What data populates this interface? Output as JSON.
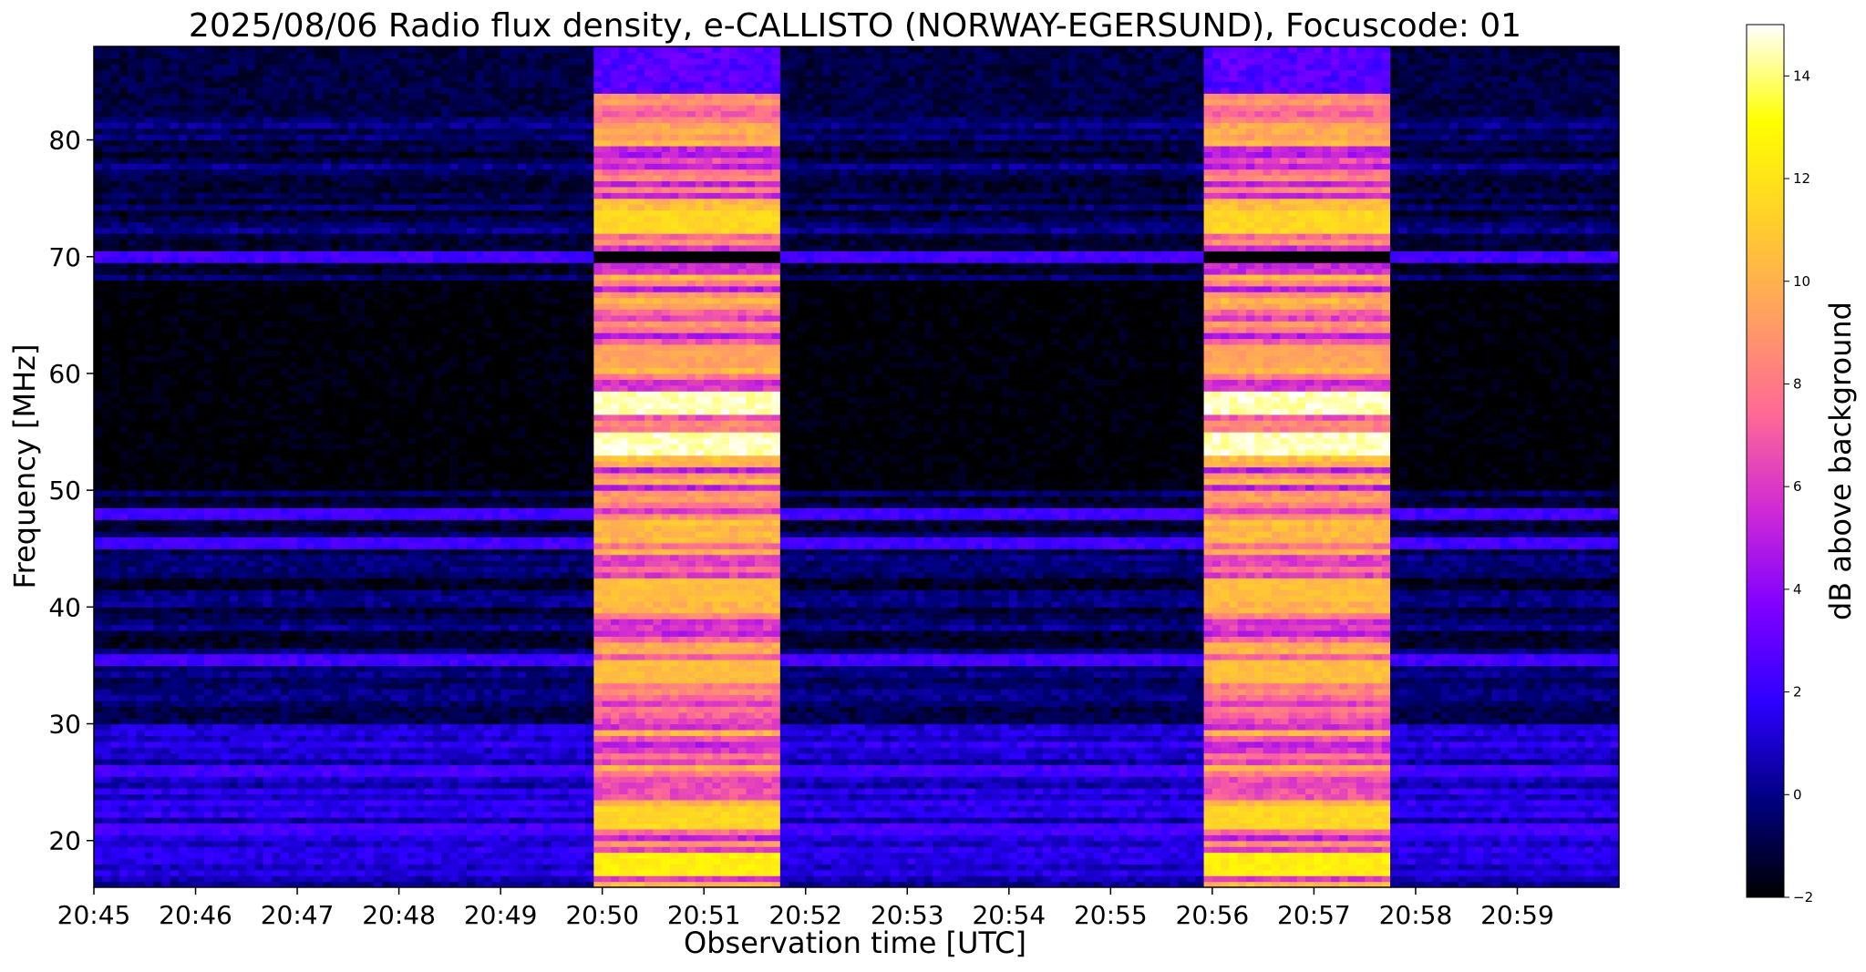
{
  "chart_data": {
    "type": "heatmap",
    "title": "2025/08/06  Radio flux density, e-CALLISTO (NORWAY-EGERSUND), Focuscode: 01",
    "xlabel": "Observation time [UTC]",
    "ylabel": "Frequency [MHz]",
    "colorbar_label": "dB above background",
    "colormap": "gnuplot2",
    "colormap_stops": [
      "#000000",
      "#00007f",
      "#2b00ff",
      "#8000ff",
      "#d02ad4",
      "#ff6a95",
      "#ffa060",
      "#ffd02a",
      "#ffff00",
      "#ffffff"
    ],
    "x_ticks": [
      "20:45",
      "20:46",
      "20:47",
      "20:48",
      "20:49",
      "20:50",
      "20:51",
      "20:52",
      "20:53",
      "20:54",
      "20:55",
      "20:56",
      "20:57",
      "20:58",
      "20:59"
    ],
    "x_range_minutes": [
      0,
      15
    ],
    "y_ticks": [
      20,
      30,
      40,
      50,
      60,
      70,
      80
    ],
    "y_range": [
      16,
      88
    ],
    "colorbar_ticks": [
      -2,
      0,
      2,
      4,
      6,
      8,
      10,
      12,
      14
    ],
    "colorbar_range": [
      -2,
      15
    ],
    "bursts": [
      {
        "start": "20:49:55",
        "end": "20:51:45",
        "peak_db": 15
      },
      {
        "start": "20:55:55",
        "end": "20:57:45",
        "peak_db": 15
      }
    ],
    "bright_bands_mhz": [
      {
        "freq": 57.5,
        "db": 15
      },
      {
        "freq": 54.0,
        "db": 15
      },
      {
        "freq": 73.0,
        "db": 12
      },
      {
        "freq": 61.5,
        "db": 10
      },
      {
        "freq": 41.5,
        "db": 11
      },
      {
        "freq": 34.5,
        "db": 11
      },
      {
        "freq": 22.0,
        "db": 12
      },
      {
        "freq": 18.0,
        "db": 13
      }
    ],
    "interference_lines_mhz": [
      70,
      48,
      45.5,
      35.5,
      26,
      21
    ]
  }
}
